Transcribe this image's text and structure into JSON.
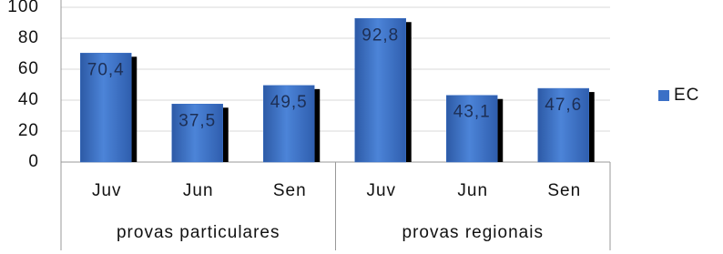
{
  "chart_data": {
    "type": "bar",
    "groups": [
      {
        "name": "provas particulares",
        "categories": [
          "Juv",
          "Jun",
          "Sen"
        ]
      },
      {
        "name": "provas regionais",
        "categories": [
          "Juv",
          "Jun",
          "Sen"
        ]
      }
    ],
    "series": [
      {
        "name": "EC",
        "color": "#3b70c6",
        "values": [
          70.4,
          37.5,
          49.5,
          92.8,
          43.1,
          47.6
        ],
        "value_labels": [
          "70,4",
          "37,5",
          "49,5",
          "92,8",
          "43,1",
          "47,6"
        ]
      }
    ],
    "ylim": [
      0,
      100
    ],
    "yticks": [
      0,
      20,
      40,
      60,
      80,
      100
    ],
    "grid": true,
    "legend": "right"
  }
}
